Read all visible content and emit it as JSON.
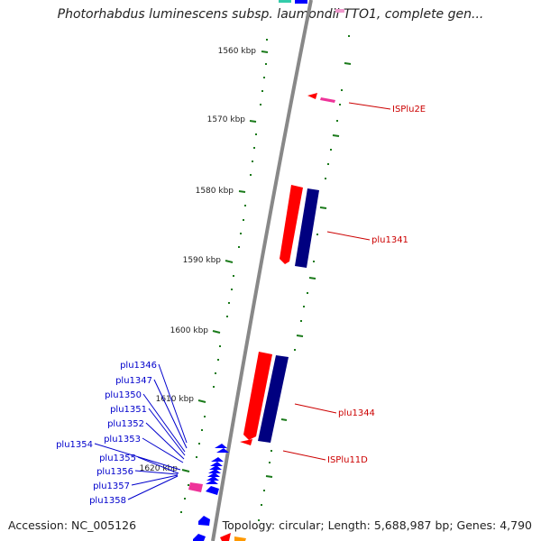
{
  "title": "Photorhabdus luminescens subsp. laumondii TTO1, complete gen...",
  "accession": "Accession: NC_005126",
  "topology": "Topology: circular; Length: 5,688,987 bp; Genes: 4,790",
  "kbp_labels": [
    "1560 kbp",
    "1570 kbp",
    "1580 kbp",
    "1590 kbp",
    "1600 kbp",
    "1610 kbp",
    "1620 kbp"
  ],
  "right_labels": [
    "ISPlu2E",
    "plu1341",
    "plu1344",
    "ISPlu11D"
  ],
  "left_labels": [
    "plu1346",
    "plu1347",
    "plu1350",
    "plu1351",
    "plu1352",
    "plu1353",
    "plu1354",
    "plu1355",
    "plu1356",
    "plu1357",
    "plu1358"
  ],
  "colors": {
    "backbone": "#888888",
    "tick": "#1a7a1a",
    "red_label": "#cc0000",
    "blue_label": "#0000cc",
    "gene_red": "#ff0000",
    "gene_navy": "#000080",
    "gene_blue": "#0000ff",
    "gene_pink": "#ee3399"
  }
}
